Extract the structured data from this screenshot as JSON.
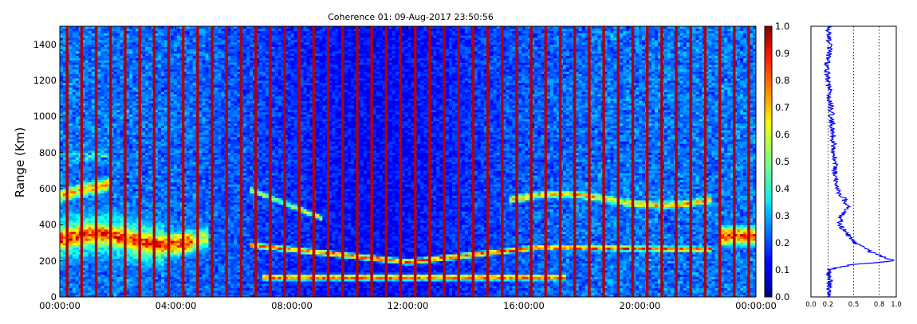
{
  "chart_data": [
    {
      "type": "heatmap",
      "title": "Coherence 01: 09-Aug-2017 23:50:56",
      "ylabel": "Range (Km)",
      "xlabel": "",
      "xlim": [
        "00:00:00",
        "24:00:00"
      ],
      "ylim": [
        0,
        1500
      ],
      "x_tick_labels": [
        "00:00:00",
        "04:00:00",
        "08:00:00",
        "12:00:00",
        "16:00:00",
        "20:00:00",
        "00:00:00"
      ],
      "y_tick_labels": [
        "0",
        "200",
        "400",
        "600",
        "800",
        "1000",
        "1200",
        "1400"
      ],
      "colormap": "jet",
      "colorbar": {
        "range": [
          0.0,
          1.0
        ],
        "tick_labels": [
          "0.0",
          "0.1",
          "0.2",
          "0.3",
          "0.4",
          "0.5",
          "0.6",
          "0.7",
          "0.8",
          "0.9",
          "1.0"
        ]
      },
      "features": [
        {
          "name": "interference-stripes",
          "value": 0.95,
          "time_hours_start": 0.25,
          "time_hours_end": 23.8,
          "spacing_hours": 0.5
        },
        {
          "name": "night-echo-band",
          "value": 0.9,
          "time_hours": [
            0,
            5
          ],
          "range_km": [
            240,
            400
          ]
        },
        {
          "name": "morning-echo-upper",
          "value": 0.75,
          "time_hours": [
            0,
            1.6
          ],
          "range_km": [
            520,
            680
          ]
        },
        {
          "name": "day-low-trace",
          "value": 0.85,
          "time_hours": [
            7,
            17.5
          ],
          "range_km": [
            90,
            130
          ]
        },
        {
          "name": "day-trace-curve",
          "value": 0.9,
          "time_hours": [
            6.5,
            22.5
          ],
          "range_km_at_start": 290,
          "range_km_min": 190,
          "range_km_at_end": 270
        },
        {
          "name": "afternoon-upper-trace",
          "value": 0.8,
          "time_hours": [
            15.5,
            22.5
          ],
          "range_km": [
            500,
            580
          ]
        },
        {
          "name": "evening-echo-band",
          "value": 0.9,
          "time_hours": [
            22.8,
            24
          ],
          "range_km": [
            260,
            420
          ]
        }
      ]
    },
    {
      "type": "line",
      "title": "",
      "xlabel": "",
      "ylabel": "",
      "xlim": [
        0.0,
        1.0
      ],
      "ylim": [
        0,
        1500
      ],
      "x_tick_labels": [
        "0.0",
        "0.2",
        "0.5",
        "0.8",
        "1.0"
      ],
      "grid_x": [
        0.2,
        0.5,
        0.8
      ],
      "color": "#0000ff",
      "range_km": [
        0,
        100,
        150,
        180,
        200,
        220,
        250,
        300,
        350,
        400,
        450,
        500,
        600,
        700,
        800,
        900,
        1000,
        1100,
        1200,
        1300,
        1400,
        1500
      ],
      "mean_coherence": [
        0.2,
        0.22,
        0.2,
        0.5,
        0.98,
        0.85,
        0.7,
        0.52,
        0.42,
        0.34,
        0.36,
        0.45,
        0.3,
        0.28,
        0.27,
        0.26,
        0.24,
        0.22,
        0.2,
        0.19,
        0.22,
        0.2
      ]
    }
  ]
}
